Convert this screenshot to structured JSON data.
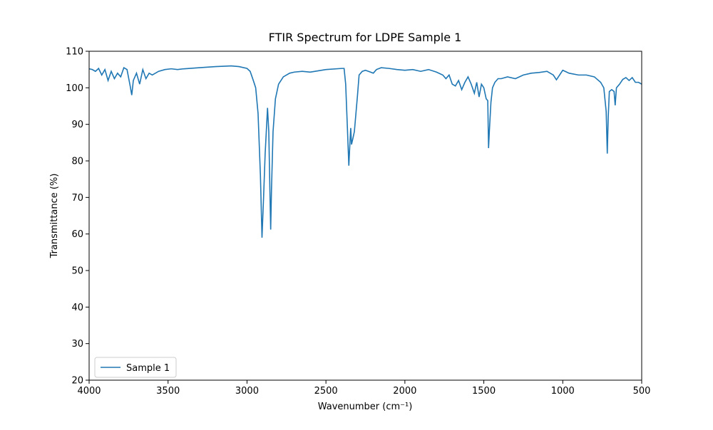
{
  "chart_data": {
    "type": "line",
    "title": "FTIR Spectrum for LDPE Sample 1",
    "xlabel": "Wavenumber (cm⁻¹)",
    "ylabel": "Transmittance (%)",
    "x": [
      4000,
      3980,
      3960,
      3940,
      3920,
      3900,
      3880,
      3860,
      3840,
      3820,
      3800,
      3780,
      3760,
      3740,
      3730,
      3720,
      3700,
      3680,
      3660,
      3640,
      3620,
      3600,
      3560,
      3520,
      3480,
      3440,
      3400,
      3300,
      3200,
      3100,
      3050,
      3000,
      2980,
      2960,
      2945,
      2930,
      2915,
      2905,
      2895,
      2885,
      2870,
      2862,
      2855,
      2850,
      2845,
      2835,
      2820,
      2800,
      2770,
      2730,
      2700,
      2650,
      2600,
      2500,
      2400,
      2385,
      2375,
      2365,
      2355,
      2348,
      2343,
      2338,
      2330,
      2320,
      2310,
      2300,
      2290,
      2270,
      2250,
      2230,
      2200,
      2180,
      2150,
      2100,
      2050,
      2000,
      1950,
      1900,
      1850,
      1800,
      1760,
      1740,
      1720,
      1700,
      1680,
      1660,
      1640,
      1620,
      1600,
      1580,
      1560,
      1545,
      1530,
      1515,
      1500,
      1485,
      1475,
      1470,
      1465,
      1455,
      1445,
      1430,
      1410,
      1390,
      1350,
      1300,
      1250,
      1200,
      1150,
      1100,
      1060,
      1040,
      1000,
      960,
      900,
      850,
      800,
      760,
      740,
      725,
      718,
      712,
      705,
      690,
      675,
      668,
      660,
      640,
      620,
      600,
      580,
      560,
      540,
      520,
      500
    ],
    "series": [
      {
        "name": "Sample 1",
        "color": "#1f77b4",
        "values": [
          105.2,
          105,
          104.5,
          105.3,
          103.5,
          105,
          102,
          104.5,
          102.5,
          104,
          103,
          105.5,
          105,
          100.5,
          98,
          102,
          104,
          101,
          105,
          102.5,
          104,
          103.5,
          104.5,
          105,
          105.2,
          105,
          105.2,
          105.5,
          105.8,
          106,
          105.8,
          105.3,
          104.5,
          102,
          100,
          93,
          76,
          59,
          70,
          82,
          94.5,
          88,
          72,
          61.2,
          72,
          88,
          97,
          101,
          103,
          104,
          104.3,
          104.5,
          104.3,
          105,
          105.3,
          105.3,
          101,
          90,
          78.7,
          85,
          89,
          84.5,
          86,
          88,
          93,
          98,
          103.5,
          104.5,
          104.8,
          104.5,
          104,
          105,
          105.5,
          105.3,
          105,
          104.8,
          105,
          104.5,
          105,
          104.3,
          103.5,
          102.5,
          103.5,
          101,
          100.5,
          102,
          99.5,
          101.5,
          103,
          101,
          98.5,
          101.5,
          97.5,
          101,
          100,
          97,
          96.5,
          83.5,
          88,
          96,
          100,
          101.5,
          102.5,
          102.5,
          103,
          102.5,
          103.5,
          104,
          104.2,
          104.5,
          103.5,
          102.2,
          104.8,
          104,
          103.5,
          103.5,
          103,
          101.5,
          100,
          93.5,
          82,
          92,
          99,
          99.5,
          99,
          95.2,
          100,
          101,
          102.3,
          102.8,
          102,
          102.8,
          101.5,
          101.5,
          101
        ]
      }
    ],
    "xlim": [
      4000,
      500
    ],
    "xticks": [
      4000,
      3500,
      3000,
      2500,
      2000,
      1500,
      1000,
      500
    ],
    "ylim": [
      20,
      110
    ],
    "yticks": [
      20,
      30,
      40,
      50,
      60,
      70,
      80,
      90,
      100,
      110
    ],
    "grid": false,
    "legend": "lower left"
  }
}
